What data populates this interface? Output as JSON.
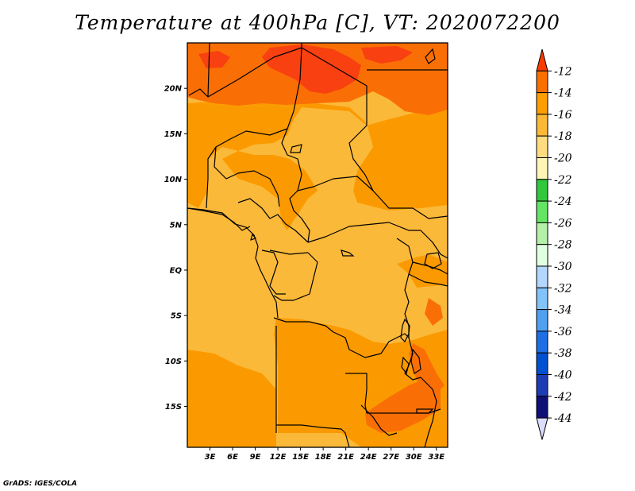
{
  "title": "Temperature at 400hPa [C], VT: 2020072200",
  "credit": "GrADS: IGES/COLA",
  "map": {
    "lon_range": [
      0,
      34.5
    ],
    "lat_range": [
      -19.5,
      25
    ],
    "lon_ticks": [
      "3E",
      "6E",
      "9E",
      "12E",
      "15E",
      "18E",
      "21E",
      "24E",
      "27E",
      "30E",
      "33E"
    ],
    "lat_ticks": [
      "20N",
      "15N",
      "10N",
      "5N",
      "EQ",
      "5S",
      "10S",
      "15S"
    ]
  },
  "colorbar": {
    "levels": [
      "-12",
      "-14",
      "-16",
      "-18",
      "-20",
      "-22",
      "-24",
      "-26",
      "-28",
      "-30",
      "-32",
      "-34",
      "-36",
      "-38",
      "-40",
      "-42",
      "-44"
    ],
    "colors": [
      "#fa3c00",
      "#fa7000",
      "#ff9e00",
      "#fbb936",
      "#ffdc80",
      "#fff5b4",
      "#32c83c",
      "#64e664",
      "#b4f0a8",
      "#e1ffe1",
      "#b4d7ff",
      "#82c3fa",
      "#50a0f0",
      "#1e6ee6",
      "#0050d2",
      "#1e3cb4",
      "#0f0f78",
      "#dcdcff"
    ]
  },
  "temperature_colors": {
    "t_gt_minus12": "#f84010",
    "t_minus12_to_minus14": "#f96f06",
    "t_minus14_to_minus16": "#fb9a00",
    "t_minus16_to_minus18": "#fbb93a"
  }
}
